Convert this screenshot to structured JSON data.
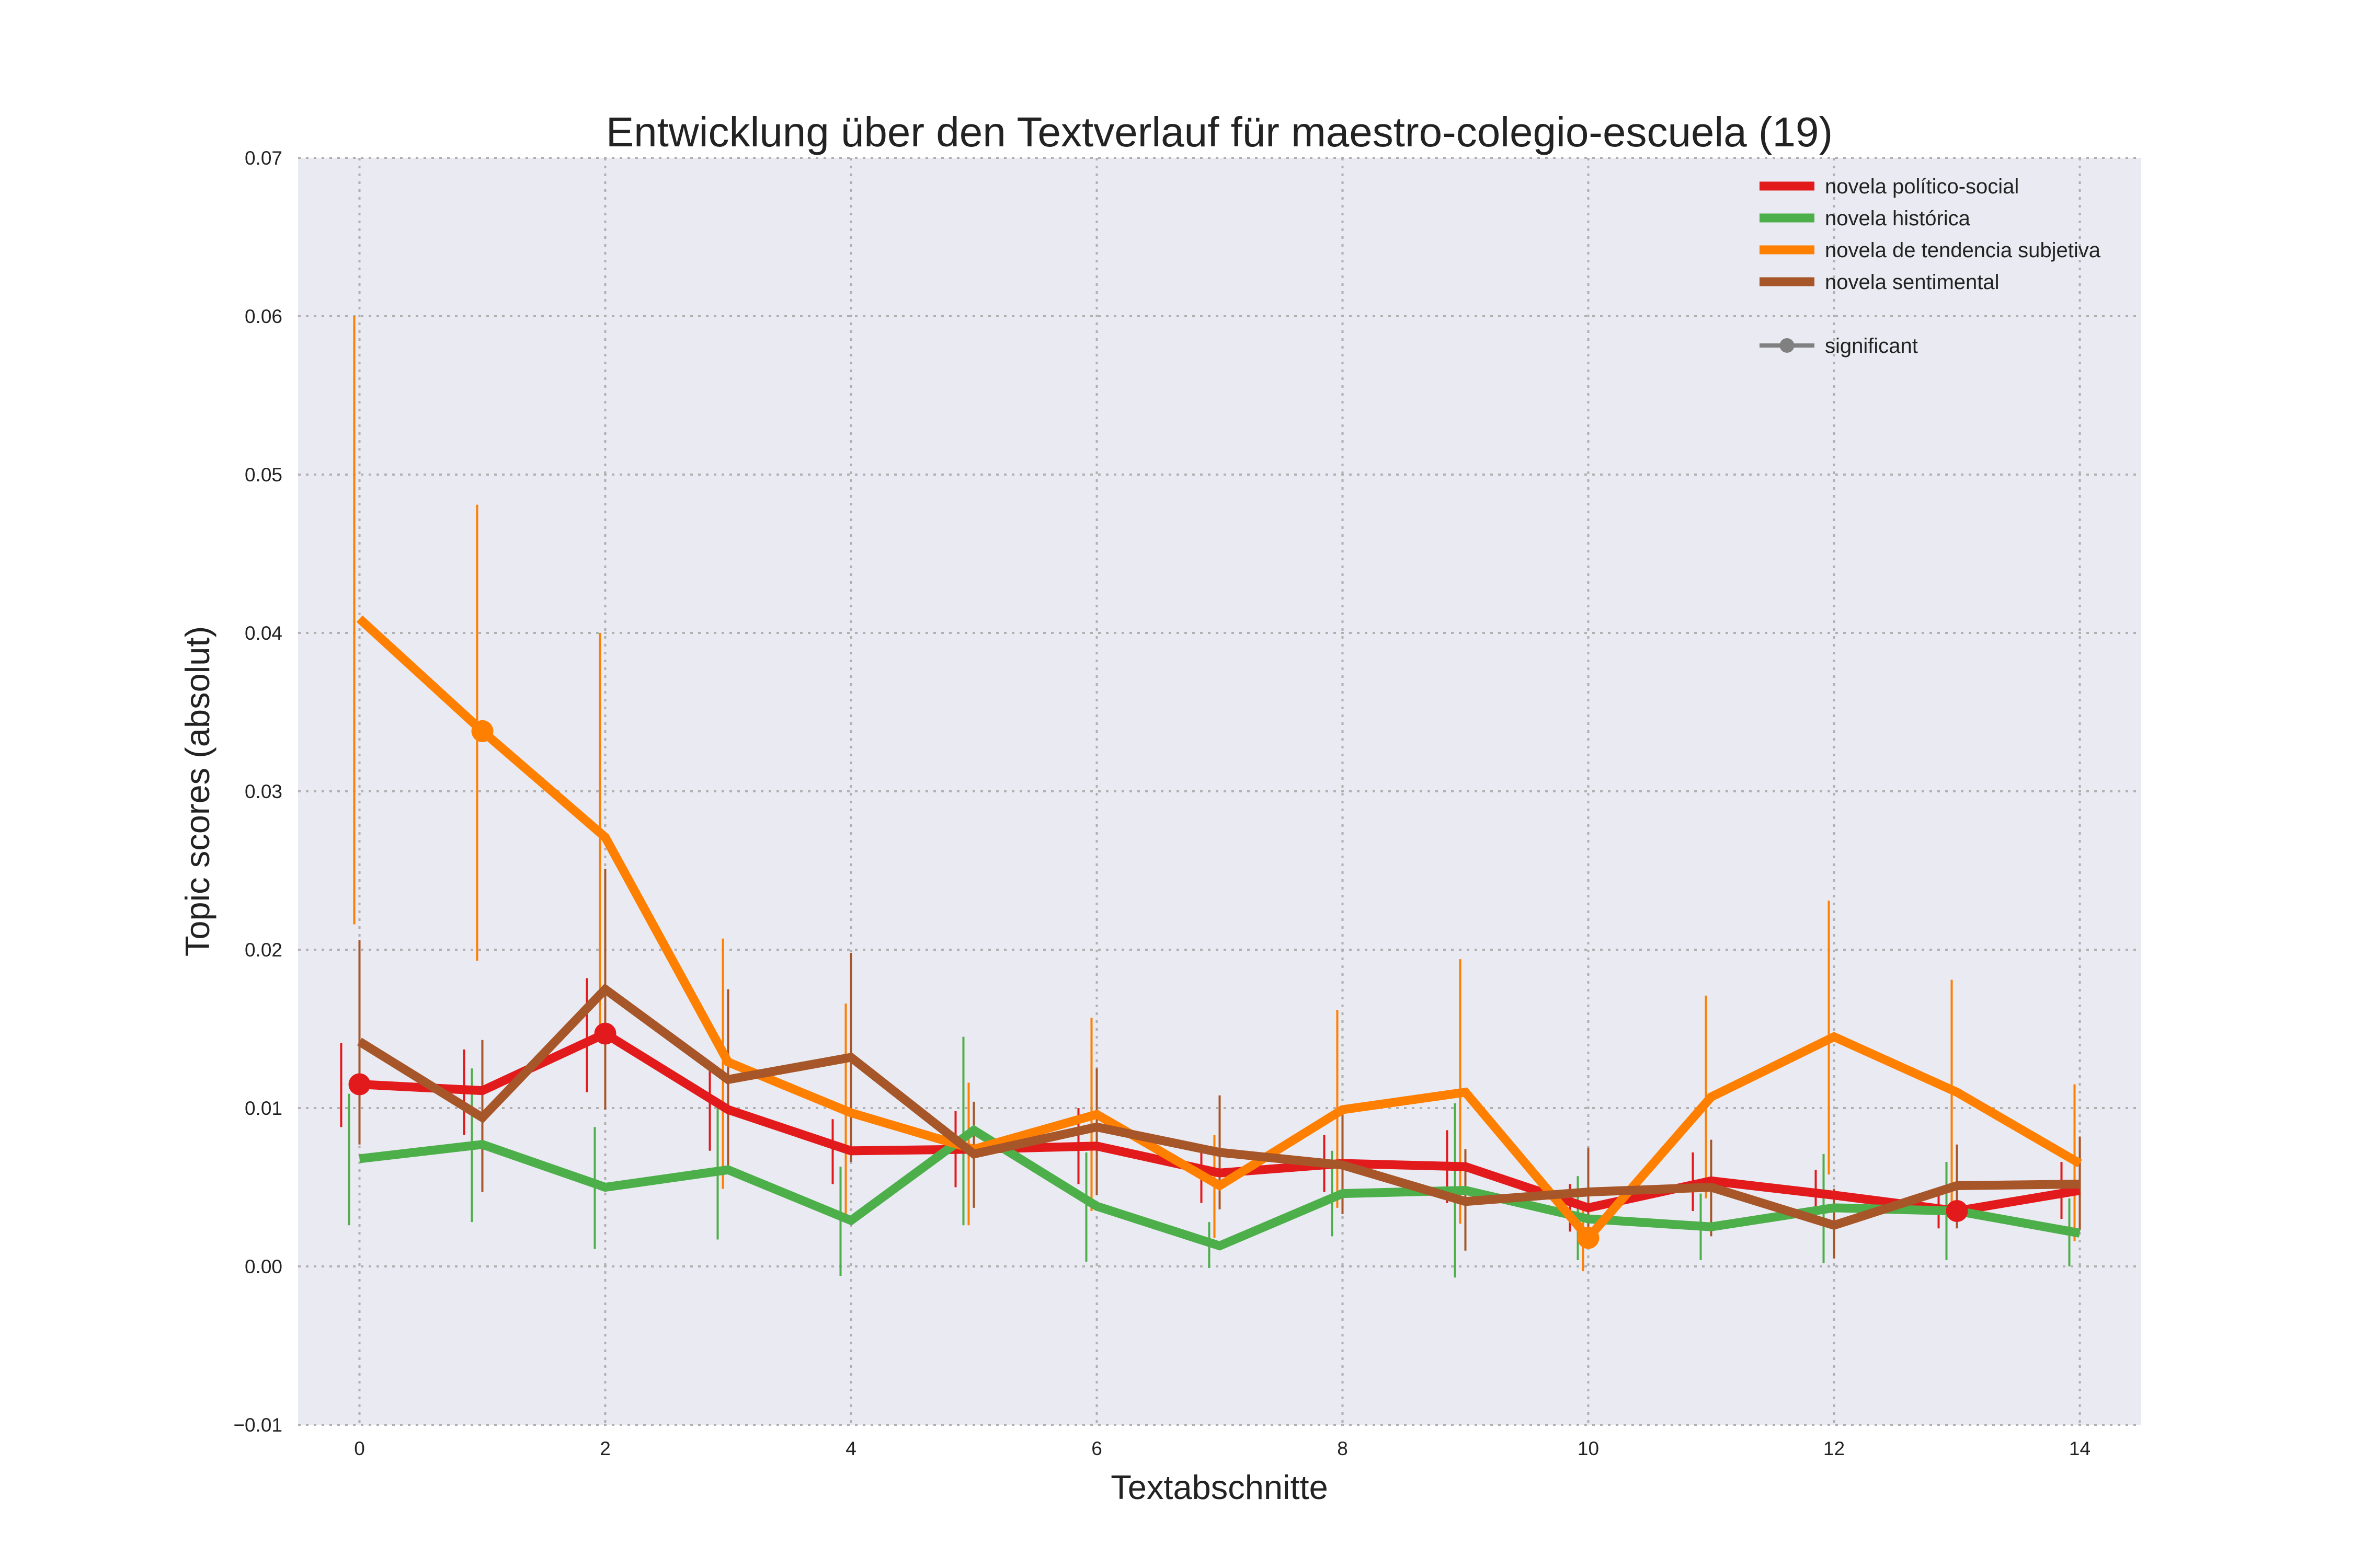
{
  "chart_data": {
    "type": "line",
    "title": "Entwicklung über den Textverlauf für maestro-colegio-escuela (19)",
    "xlabel": "Textabschnitte",
    "ylabel": "Topic scores (absolut)",
    "xlim": [
      -0.5,
      14.5
    ],
    "ylim": [
      -0.01,
      0.07
    ],
    "x": [
      0,
      1,
      2,
      3,
      4,
      5,
      6,
      7,
      8,
      9,
      10,
      11,
      12,
      13,
      14
    ],
    "xticks": [
      0,
      2,
      4,
      6,
      8,
      10,
      12,
      14
    ],
    "xtick_labels": [
      "0",
      "2",
      "4",
      "6",
      "8",
      "10",
      "12",
      "14"
    ],
    "yticks": [
      -0.01,
      0.0,
      0.01,
      0.02,
      0.03,
      0.04,
      0.05,
      0.06,
      0.07
    ],
    "ytick_labels": [
      "−0.01",
      "0.00",
      "0.01",
      "0.02",
      "0.03",
      "0.04",
      "0.05",
      "0.06",
      "0.07"
    ],
    "grid": true,
    "legend_position": "top-right",
    "background_color": "#eaeaf2",
    "series": [
      {
        "name": "novela político-social",
        "color": "#e31a1c",
        "values": [
          0.0115,
          0.0111,
          0.0147,
          0.0099,
          0.0073,
          0.0074,
          0.0076,
          0.0059,
          0.0065,
          0.0063,
          0.0037,
          0.0054,
          0.0045,
          0.0035,
          0.0048
        ],
        "errors": [
          [
            0.0088,
            0.0141
          ],
          [
            0.0083,
            0.0137
          ],
          [
            0.011,
            0.0182
          ],
          [
            0.0073,
            0.0125
          ],
          [
            0.0052,
            0.0093
          ],
          [
            0.005,
            0.0098
          ],
          [
            0.0052,
            0.01
          ],
          [
            0.004,
            0.0076
          ],
          [
            0.0047,
            0.0083
          ],
          [
            0.004,
            0.0086
          ],
          [
            0.0022,
            0.0052
          ],
          [
            0.0035,
            0.0072
          ],
          [
            0.0029,
            0.0061
          ],
          [
            0.0024,
            0.0045
          ],
          [
            0.003,
            0.0066
          ]
        ],
        "significant": [
          0,
          2,
          13
        ]
      },
      {
        "name": "novela histórica",
        "color": "#4daf4a",
        "values": [
          0.0068,
          0.0077,
          0.005,
          0.0061,
          0.0029,
          0.0086,
          0.0038,
          0.0013,
          0.0046,
          0.0048,
          0.003,
          0.0025,
          0.0037,
          0.0035,
          0.0021
        ],
        "errors": [
          [
            0.0026,
            0.0109
          ],
          [
            0.0028,
            0.0125
          ],
          [
            0.0011,
            0.0088
          ],
          [
            0.0017,
            0.0104
          ],
          [
            -0.0006,
            0.0063
          ],
          [
            0.0026,
            0.0145
          ],
          [
            0.0003,
            0.0072
          ],
          [
            -0.0001,
            0.0028
          ],
          [
            0.0019,
            0.0073
          ],
          [
            -0.0007,
            0.0103
          ],
          [
            0.0004,
            0.0057
          ],
          [
            0.0004,
            0.0046
          ],
          [
            0.0002,
            0.0071
          ],
          [
            0.0004,
            0.0066
          ],
          [
            0.0,
            0.0043
          ]
        ],
        "significant": []
      },
      {
        "name": "novela de tendencia subjetiva",
        "color": "#ff7f00",
        "values": [
          0.0409,
          0.0338,
          0.0271,
          0.0129,
          0.0097,
          0.0074,
          0.0096,
          0.0051,
          0.0099,
          0.011,
          0.0018,
          0.0107,
          0.0145,
          0.011,
          0.0065
        ],
        "errors": [
          [
            0.0216,
            0.06
          ],
          [
            0.0193,
            0.0481
          ],
          [
            0.0142,
            0.04
          ],
          [
            0.0049,
            0.0207
          ],
          [
            0.0029,
            0.0166
          ],
          [
            0.0026,
            0.0116
          ],
          [
            0.0035,
            0.0157
          ],
          [
            0.0018,
            0.0083
          ],
          [
            0.0037,
            0.0162
          ],
          [
            0.0027,
            0.0194
          ],
          [
            -0.0003,
            0.0038
          ],
          [
            0.0043,
            0.0171
          ],
          [
            0.0058,
            0.0231
          ],
          [
            0.0039,
            0.0181
          ],
          [
            0.0016,
            0.0115
          ]
        ],
        "significant": [
          1,
          10
        ]
      },
      {
        "name": "novela sentimental",
        "color": "#a65628",
        "values": [
          0.0142,
          0.0094,
          0.0175,
          0.0118,
          0.0132,
          0.0071,
          0.0088,
          0.0072,
          0.0064,
          0.0041,
          0.0047,
          0.005,
          0.0026,
          0.0051,
          0.0052
        ],
        "errors": [
          [
            0.0077,
            0.0206
          ],
          [
            0.0047,
            0.0143
          ],
          [
            0.0099,
            0.0251
          ],
          [
            0.006,
            0.0175
          ],
          [
            0.0066,
            0.0198
          ],
          [
            0.0037,
            0.0104
          ],
          [
            0.0045,
            0.0125
          ],
          [
            0.0036,
            0.0108
          ],
          [
            0.0033,
            0.0097
          ],
          [
            0.001,
            0.0074
          ],
          [
            0.0015,
            0.0075
          ],
          [
            0.0019,
            0.008
          ],
          [
            0.0005,
            0.0049
          ],
          [
            0.0024,
            0.0077
          ],
          [
            0.0023,
            0.0082
          ]
        ],
        "significant": []
      }
    ],
    "legend_extra": {
      "label": "significant",
      "color": "#808080"
    }
  }
}
